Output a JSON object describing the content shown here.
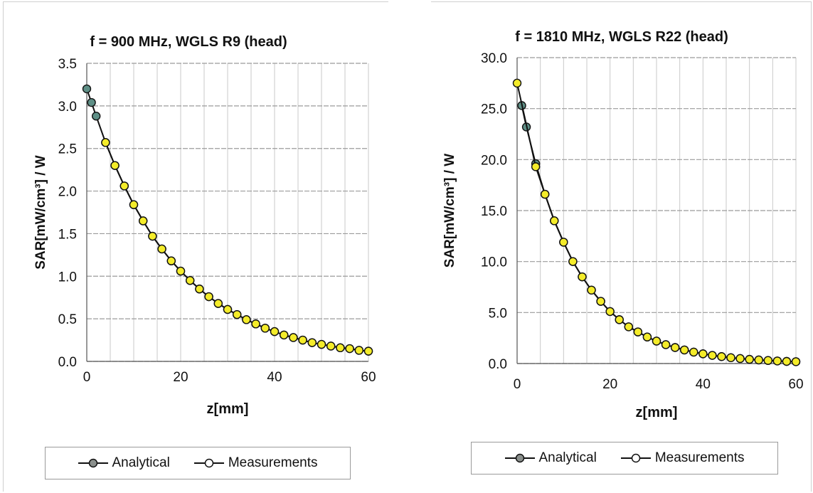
{
  "chart_data": [
    {
      "type": "line",
      "title": "f = 900 MHz, WGLS R9 (head)",
      "xlabel": "z[mm]",
      "ylabel": "SAR[mW/cm³] / W",
      "xlim": [
        0,
        60
      ],
      "ylim": [
        0,
        3.5
      ],
      "xticks": [
        "0",
        "20",
        "40",
        "60"
      ],
      "yticks": [
        "0.0",
        "0.5",
        "1.0",
        "1.5",
        "2.0",
        "2.5",
        "3.0",
        "3.5"
      ],
      "grid": true,
      "legend_position": "bottom",
      "series": [
        {
          "name": "Analytical",
          "color": "#5e8f86",
          "x": [
            0,
            1,
            2,
            4,
            6,
            8,
            10,
            12,
            14,
            16,
            18,
            20,
            22,
            24,
            26,
            28,
            30,
            32,
            34,
            36,
            38,
            40,
            42,
            44,
            46,
            48,
            50,
            52,
            54,
            56,
            58,
            60
          ],
          "y": [
            3.2,
            3.04,
            2.88,
            2.57,
            2.3,
            2.06,
            1.84,
            1.65,
            1.47,
            1.32,
            1.18,
            1.06,
            0.95,
            0.85,
            0.76,
            0.68,
            0.61,
            0.55,
            0.49,
            0.44,
            0.39,
            0.35,
            0.31,
            0.28,
            0.25,
            0.22,
            0.2,
            0.18,
            0.16,
            0.15,
            0.13,
            0.12
          ]
        },
        {
          "name": "Measurements",
          "color": "#f4ec2a",
          "x": [
            4,
            6,
            8,
            10,
            12,
            14,
            16,
            18,
            20,
            22,
            24,
            26,
            28,
            30,
            32,
            34,
            36,
            38,
            40,
            42,
            44,
            46,
            48,
            50,
            52,
            54,
            56,
            58,
            60
          ],
          "y": [
            2.57,
            2.3,
            2.06,
            1.84,
            1.65,
            1.47,
            1.32,
            1.18,
            1.06,
            0.95,
            0.85,
            0.76,
            0.68,
            0.61,
            0.55,
            0.49,
            0.44,
            0.39,
            0.35,
            0.31,
            0.28,
            0.25,
            0.22,
            0.2,
            0.18,
            0.16,
            0.15,
            0.13,
            0.12
          ]
        }
      ]
    },
    {
      "type": "line",
      "title": "f = 1810 MHz, WGLS R22 (head)",
      "xlabel": "z[mm]",
      "ylabel": "SAR[mW/cm³] / W",
      "xlim": [
        0,
        60
      ],
      "ylim": [
        0,
        30
      ],
      "xticks": [
        "0",
        "20",
        "40",
        "60"
      ],
      "yticks": [
        "0.0",
        "5.0",
        "10.0",
        "15.0",
        "20.0",
        "25.0",
        "30.0"
      ],
      "grid": true,
      "legend_position": "bottom",
      "series": [
        {
          "name": "Analytical",
          "color": "#5e8f86",
          "x": [
            1,
            2,
            4,
            6,
            8,
            10,
            12,
            14,
            16,
            18,
            20,
            22,
            24,
            26,
            28,
            30,
            32,
            34,
            36,
            38,
            40,
            42,
            44,
            46,
            48,
            50,
            52,
            54,
            56,
            58,
            60
          ],
          "y": [
            25.3,
            23.2,
            19.6,
            16.6,
            14.0,
            11.9,
            10.0,
            8.5,
            7.2,
            6.1,
            5.1,
            4.3,
            3.6,
            3.1,
            2.6,
            2.2,
            1.85,
            1.57,
            1.33,
            1.12,
            0.95,
            0.8,
            0.68,
            0.57,
            0.49,
            0.41,
            0.35,
            0.3,
            0.25,
            0.21,
            0.18
          ]
        },
        {
          "name": "Measurements",
          "color": "#f4ec2a",
          "x": [
            0,
            4,
            6,
            8,
            10,
            12,
            14,
            16,
            18,
            20,
            22,
            24,
            26,
            28,
            30,
            32,
            34,
            36,
            38,
            40,
            42,
            44,
            46,
            48,
            50,
            52,
            54,
            56,
            58,
            60
          ],
          "y": [
            27.5,
            19.3,
            16.6,
            14.0,
            11.9,
            10.0,
            8.5,
            7.2,
            6.1,
            5.1,
            4.3,
            3.6,
            3.1,
            2.6,
            2.2,
            1.85,
            1.57,
            1.33,
            1.12,
            0.95,
            0.8,
            0.68,
            0.57,
            0.49,
            0.41,
            0.35,
            0.3,
            0.25,
            0.21,
            0.18
          ]
        }
      ]
    }
  ],
  "legend": {
    "analytical_label": "Analytical",
    "measurements_label": "Measurements"
  }
}
